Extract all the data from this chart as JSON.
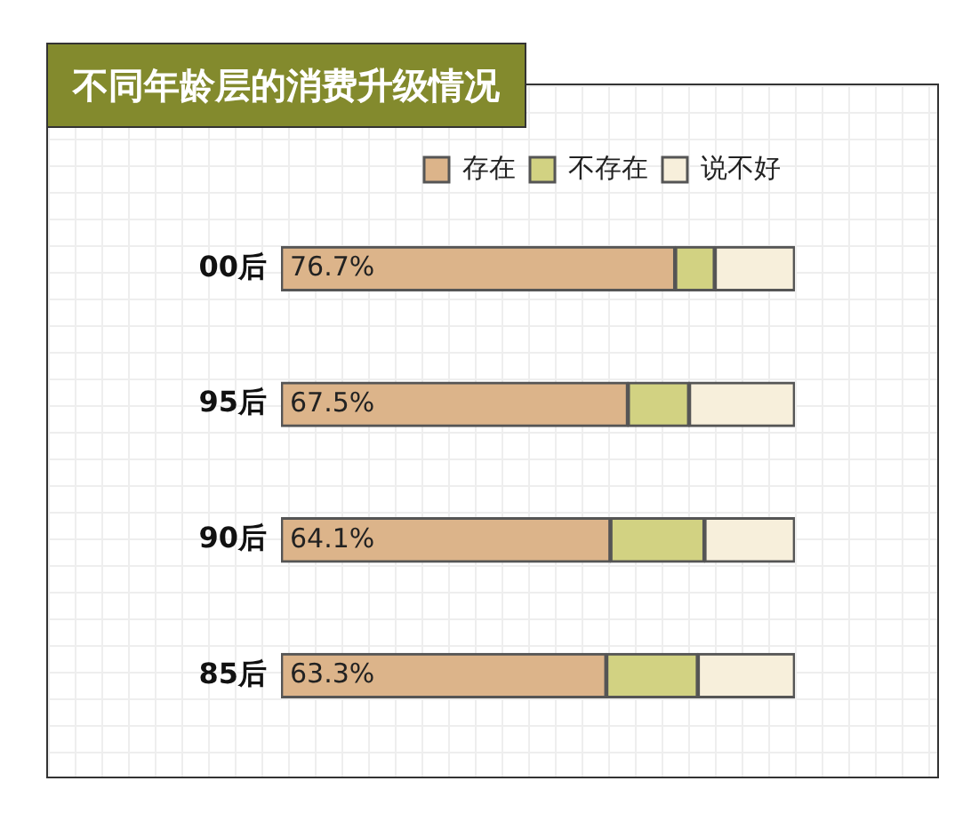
{
  "chart_data": {
    "type": "bar",
    "orientation": "horizontal",
    "stacked": true,
    "title": "不同年龄层的消费升级情况",
    "categories": [
      "00后",
      "95后",
      "90后",
      "85后"
    ],
    "series": [
      {
        "name": "存在",
        "color": "#dcb48a",
        "values": [
          76.7,
          67.5,
          64.1,
          63.3
        ],
        "value_labels": [
          "76.7%",
          "67.5%",
          "64.1%",
          "63.3%"
        ]
      },
      {
        "name": "不存在",
        "color": "#d2d282",
        "values": [
          7.7,
          11.9,
          18.3,
          17.8
        ]
      },
      {
        "name": "说不好",
        "color": "#f7efdb",
        "values": [
          15.6,
          20.6,
          17.6,
          18.9
        ]
      }
    ],
    "xlim": [
      0,
      100
    ],
    "tick_labels": "y",
    "legend": "top right"
  }
}
